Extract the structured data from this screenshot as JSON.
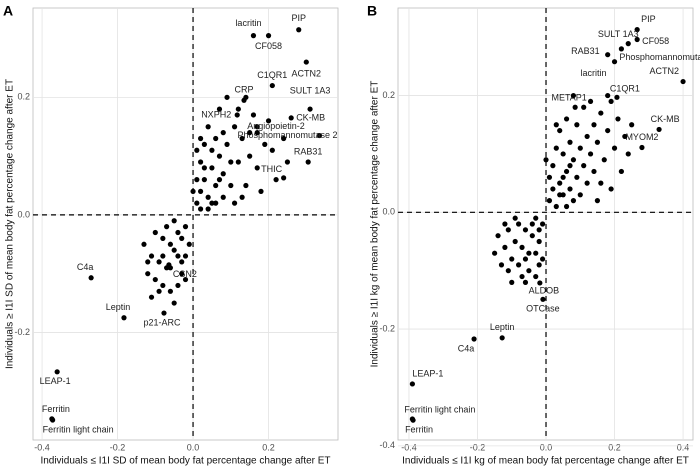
{
  "chart_data": [
    {
      "type": "scatter",
      "panel_label": "A",
      "xlabel": "Individuals ≤ I1I SD of mean body fat percentage change after ET",
      "ylabel": "Individuals ≥ I1I SD of mean body fat percentage change after ET",
      "xlim": [
        -0.424,
        0.384
      ],
      "ylim": [
        -0.383,
        0.352
      ],
      "xticks": [
        -0.4,
        -0.2,
        {
          "value": 0,
          "label": "0.0"
        },
        0.2
      ],
      "yticks": [
        -0.2,
        {
          "value": 0,
          "label": "0.0"
        },
        0.2
      ],
      "grid": true,
      "zero_lines": true,
      "color": "#000000",
      "point_labels": [
        "PIP",
        "lacritin",
        "CF058",
        "ACTN2",
        "C1QR1",
        "CRP",
        "NXPH2",
        "Angiopoietin-2",
        "SULT 1A3",
        "CK-MB",
        "Phosphomannomutase 2",
        "RAB31",
        "THIC",
        "C4a",
        "CSN2",
        "Leptin",
        "p21-ARC",
        "LEAP-1",
        "Ferritin",
        "Ferritin light chain",
        null,
        null,
        null,
        null,
        null,
        null,
        null,
        null,
        null,
        null,
        null,
        null,
        null,
        null,
        null,
        null,
        null,
        null,
        null,
        null,
        null,
        null,
        null,
        null,
        null,
        null,
        null,
        null,
        null,
        null,
        null,
        null,
        null,
        null,
        null,
        null,
        null,
        null,
        null,
        null,
        null,
        null,
        null,
        null,
        null,
        null,
        null,
        null,
        null,
        null,
        null,
        null,
        null,
        null,
        null,
        null,
        null,
        null,
        null,
        null,
        null,
        null,
        null,
        null,
        null,
        null,
        null,
        null,
        null,
        null,
        null,
        null,
        null,
        null,
        null,
        null,
        null,
        null,
        null,
        null
      ],
      "x": [
        0.28,
        0.16,
        0.2,
        0.3,
        0.21,
        0.135,
        0.117,
        0.17,
        0.31,
        0.26,
        0.335,
        0.305,
        0.24,
        -0.27,
        -0.064,
        -0.183,
        -0.077,
        -0.36,
        -0.374,
        -0.372,
        0.01,
        0.02,
        0.03,
        0.04,
        0.05,
        0.02,
        0.06,
        0.07,
        0.08,
        0.03,
        0.04,
        0.09,
        0.1,
        0.12,
        0.13,
        0.15,
        0.06,
        0.01,
        0.02,
        0.05,
        0.08,
        0.11,
        0.14,
        0.17,
        0.19,
        0.2,
        0.16,
        0.11,
        0.07,
        0.09,
        0.12,
        0.18,
        0.22,
        0.25,
        0.21,
        0.04,
        0.03,
        0.06,
        0.01,
        0.1,
        0.14,
        0.17,
        0.24,
        0.08,
        0.05,
        0.02,
        0.0,
        0.13,
        0.15,
        0.07,
        -0.02,
        -0.03,
        -0.04,
        -0.05,
        -0.02,
        -0.06,
        -0.07,
        -0.03,
        -0.08,
        -0.09,
        -0.1,
        -0.11,
        -0.04,
        -0.06,
        -0.12,
        -0.13,
        -0.05,
        -0.01,
        -0.08,
        -0.1,
        -0.07,
        -0.03,
        -0.09,
        -0.11,
        -0.06,
        -0.02,
        -0.04,
        -0.12,
        -0.05,
        -0.08
      ],
      "values": [
        0.315,
        0.305,
        0.305,
        0.26,
        0.22,
        0.195,
        0.17,
        0.15,
        0.18,
        0.165,
        0.135,
        0.09,
        0.063,
        -0.107,
        -0.085,
        -0.175,
        -0.167,
        -0.267,
        -0.347,
        -0.349,
        0.02,
        0.04,
        0.06,
        0.03,
        0.08,
        0.09,
        0.05,
        0.1,
        0.07,
        0.12,
        0.15,
        0.12,
        0.05,
        0.09,
        0.13,
        0.1,
        0.13,
        0.06,
        0.01,
        0.02,
        0.03,
        0.02,
        0.05,
        0.08,
        0.12,
        0.16,
        0.17,
        0.15,
        0.18,
        0.2,
        0.18,
        0.04,
        0.06,
        0.09,
        0.11,
        0.01,
        0.08,
        0.02,
        0.11,
        0.09,
        0.2,
        0.14,
        0.13,
        0.14,
        0.11,
        0.13,
        0.04,
        0.03,
        0.14,
        0.06,
        -0.02,
        -0.04,
        -0.03,
        -0.06,
        -0.07,
        -0.05,
        -0.09,
        -0.1,
        -0.04,
        -0.08,
        -0.11,
        -0.07,
        -0.12,
        -0.13,
        -0.1,
        -0.05,
        -0.01,
        -0.05,
        -0.12,
        -0.03,
        -0.02,
        -0.08,
        -0.13,
        -0.14,
        -0.09,
        -0.11,
        -0.07,
        -0.08,
        -0.15,
        -0.07
      ]
    },
    {
      "type": "scatter",
      "panel_label": "B",
      "xlabel": "Individuals ≤ I1I kg of mean body fat percentage change after ET",
      "ylabel": "Individuals ≥ I1I kg of mean body fat percentage change after ET",
      "xlim": [
        -0.432,
        0.429
      ],
      "ylim": [
        -0.39,
        0.35
      ],
      "xticks": [
        -0.4,
        -0.2,
        {
          "value": 0,
          "label": "0.0"
        },
        0.2,
        0.4
      ],
      "yticks": [
        -0.4,
        -0.2,
        {
          "value": 0,
          "label": "0.0"
        },
        0.2
      ],
      "grid": true,
      "zero_lines": true,
      "color": "#000000",
      "point_labels": [
        "PIP",
        "CF058",
        "SULT 1A3",
        "RAB31",
        "Phosphomannomutase 2",
        "lacritin",
        "ACTN2",
        "METAP1",
        "C1QR1",
        "CK-MB",
        "MYOM2",
        "ALDOB",
        "OTCase",
        "Leptin",
        "C4a",
        "LEAP-1",
        "Ferritin light chain",
        "Ferritin",
        null,
        null,
        null,
        null,
        null,
        null,
        null,
        null,
        null,
        null,
        null,
        null,
        null,
        null,
        null,
        null,
        null,
        null,
        null,
        null,
        null,
        null,
        null,
        null,
        null,
        null,
        null,
        null,
        null,
        null,
        null,
        null,
        null,
        null,
        null,
        null,
        null,
        null,
        null,
        null,
        null,
        null,
        null,
        null,
        null,
        null,
        null,
        null,
        null,
        null,
        null,
        null,
        null,
        null,
        null,
        null,
        null,
        null,
        null,
        null,
        null,
        null,
        null,
        null,
        null,
        null,
        null,
        null,
        null,
        null,
        null,
        null,
        null,
        null,
        null,
        null,
        null,
        null,
        null,
        null
      ],
      "x": [
        0.266,
        0.266,
        0.24,
        0.18,
        0.22,
        0.2,
        0.4,
        0.085,
        0.207,
        0.33,
        0.28,
        -0.018,
        -0.009,
        -0.128,
        -0.21,
        -0.39,
        -0.39,
        -0.388,
        0.01,
        0.02,
        0.03,
        0.04,
        0.05,
        0.06,
        0.07,
        0.08,
        0.09,
        0.1,
        0.11,
        0.12,
        0.13,
        0.14,
        0.15,
        0.16,
        0.17,
        0.18,
        0.19,
        0.2,
        0.21,
        0.22,
        0.23,
        0.02,
        0.03,
        0.04,
        0.05,
        0.06,
        0.07,
        0.08,
        0.09,
        0.1,
        0.11,
        0.12,
        0.13,
        0.14,
        0.01,
        0.0,
        0.05,
        0.06,
        0.24,
        0.19,
        0.16,
        0.03,
        0.08,
        0.15,
        0.25,
        0.18,
        0.04,
        0.07,
        -0.01,
        -0.02,
        -0.03,
        -0.04,
        -0.05,
        -0.06,
        -0.07,
        -0.08,
        -0.09,
        -0.1,
        -0.11,
        -0.12,
        -0.13,
        -0.14,
        -0.02,
        -0.03,
        -0.05,
        -0.06,
        -0.08,
        -0.04,
        -0.01,
        -0.07,
        -0.09,
        -0.11,
        -0.15,
        -0.1,
        -0.03,
        -0.06,
        -0.12,
        -0.02
      ],
      "values": [
        0.313,
        0.296,
        0.289,
        0.27,
        0.28,
        0.258,
        0.224,
        0.18,
        0.197,
        0.142,
        0.111,
        -0.121,
        -0.149,
        -0.215,
        -0.217,
        -0.294,
        -0.354,
        -0.356,
        0.02,
        0.04,
        0.01,
        0.05,
        0.03,
        0.07,
        0.04,
        0.09,
        0.06,
        0.11,
        0.08,
        0.13,
        0.1,
        0.15,
        0.12,
        0.17,
        0.09,
        0.14,
        0.19,
        0.11,
        0.16,
        0.07,
        0.13,
        0.08,
        0.11,
        0.14,
        0.1,
        0.16,
        0.12,
        0.02,
        0.15,
        0.03,
        0.18,
        0.05,
        0.19,
        0.07,
        0.06,
        0.09,
        0.06,
        0.01,
        0.1,
        0.04,
        0.05,
        0.15,
        0.2,
        0.02,
        0.15,
        0.2,
        0.03,
        0.08,
        -0.02,
        -0.05,
        -0.01,
        -0.04,
        -0.07,
        -0.03,
        -0.06,
        -0.02,
        -0.05,
        -0.08,
        -0.03,
        -0.06,
        -0.09,
        -0.04,
        -0.09,
        -0.07,
        -0.1,
        -0.12,
        -0.09,
        -0.02,
        -0.08,
        -0.11,
        -0.01,
        -0.1,
        -0.07,
        -0.12,
        -0.11,
        -0.08,
        -0.02,
        -0.03
      ]
    }
  ]
}
